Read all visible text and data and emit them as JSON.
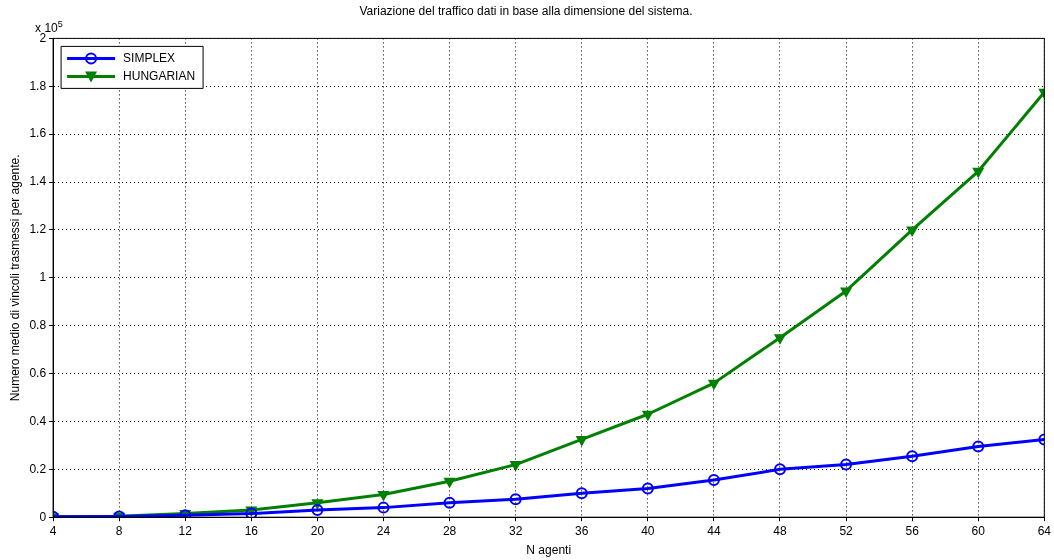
{
  "chart_data": {
    "type": "line",
    "title": "Variazione del traffico dati in base alla dimensione del sistema.",
    "xlabel": "N agenti",
    "ylabel": "Numero medio di vincoli trasmessi per agente.",
    "x": [
      4,
      8,
      12,
      16,
      20,
      24,
      28,
      32,
      36,
      40,
      44,
      48,
      52,
      56,
      60,
      64
    ],
    "series": [
      {
        "name": "SIMPLEX",
        "color": "#0000ff",
        "marker": "circle",
        "values": [
          0.002,
          0.003,
          0.008,
          0.015,
          0.03,
          0.04,
          0.06,
          0.075,
          0.1,
          0.12,
          0.155,
          0.2,
          0.22,
          0.255,
          0.295,
          0.325
        ]
      },
      {
        "name": "HUNGARIAN",
        "color": "#008000",
        "marker": "triangle",
        "values": [
          0.002,
          0.004,
          0.015,
          0.03,
          0.06,
          0.095,
          0.15,
          0.22,
          0.325,
          0.43,
          0.56,
          0.75,
          0.945,
          1.2,
          1.445,
          1.775
        ]
      }
    ],
    "xlim": [
      4,
      64
    ],
    "xticks": [
      4,
      8,
      12,
      16,
      20,
      24,
      28,
      32,
      36,
      40,
      44,
      48,
      52,
      56,
      60,
      64
    ],
    "ylim": [
      0,
      2
    ],
    "yticks": [
      0,
      0.2,
      0.4,
      0.6,
      0.8,
      1,
      1.2,
      1.4,
      1.6,
      1.8,
      2
    ],
    "annotations": [
      "x 10$^{5}$"
    ],
    "grid": true,
    "legend": "top left",
    "line_style": "solid"
  }
}
